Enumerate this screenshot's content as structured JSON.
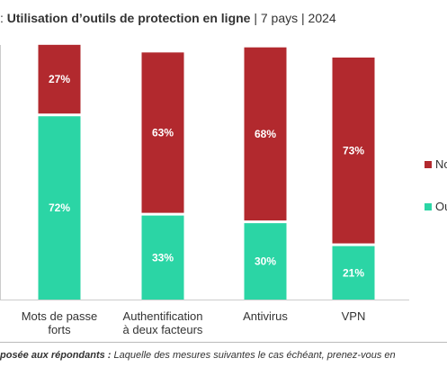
{
  "header": {
    "title_prefix": ": ",
    "title_main": "Utilisation d’outils de protection en ligne",
    "title_suffix": " | 7 pays | 2024"
  },
  "footer": {
    "question_label": "posée aux répondants :",
    "question_text": " Laquelle des mesures suivantes le cas échéant, prenez-vous en"
  },
  "colors": {
    "non": "#B2292E",
    "oui": "#2BD5A5"
  },
  "chart_data": {
    "type": "bar",
    "stacked": true,
    "categories": [
      [
        "Mots de passe",
        "forts"
      ],
      [
        "Authentification",
        "à deux facteurs"
      ],
      [
        "Antivirus"
      ],
      [
        "VPN"
      ]
    ],
    "series": [
      {
        "name": "Oui",
        "values": [
          72,
          33,
          30,
          21
        ],
        "labels": [
          "72%",
          "33%",
          "30%",
          "21%"
        ]
      },
      {
        "name": "Non",
        "values": [
          27,
          63,
          68,
          73
        ],
        "labels": [
          "27%",
          "63%",
          "68%",
          "73%"
        ]
      }
    ],
    "ylim": [
      0,
      100
    ],
    "legend": {
      "placement": "right",
      "entries": [
        "No",
        "Ou"
      ]
    },
    "grid": false
  }
}
